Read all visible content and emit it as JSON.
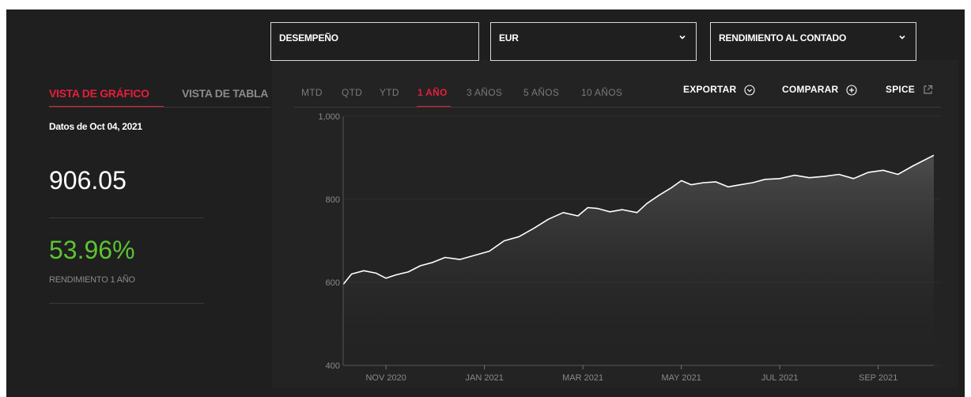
{
  "dropdowns": {
    "metric": {
      "value": "DESEMPEÑO"
    },
    "currency": {
      "value": "EUR"
    },
    "return_type": {
      "value": "RENDIMIENTO AL CONTADO"
    }
  },
  "view_tabs": [
    {
      "label": "VISTA DE GRÁFICO",
      "active": true
    },
    {
      "label": "VISTA DE TABLA",
      "active": false
    }
  ],
  "summary": {
    "as_of": "Datos de Oct 04, 2021",
    "value": "906.05",
    "return_pct": "53.96%",
    "return_label": "RENDIMIENTO 1 AÑO"
  },
  "ranges": [
    {
      "label": "MTD",
      "active": false
    },
    {
      "label": "QTD",
      "active": false
    },
    {
      "label": "YTD",
      "active": false
    },
    {
      "label": "1 AÑO",
      "active": true
    },
    {
      "label": "3 AÑOS",
      "active": false
    },
    {
      "label": "5 AÑOS",
      "active": false
    },
    {
      "label": "10 AÑOS",
      "active": false
    }
  ],
  "tools": {
    "export": "EXPORTAR",
    "compare": "COMPARAR",
    "spice": "SPICE"
  },
  "colors": {
    "accent_red": "#e61e3c",
    "positive_green": "#5cc433",
    "background": "#1f1f1f",
    "line": "#ffffff"
  },
  "chart_data": {
    "type": "area",
    "y_ticks": [
      "1,000",
      "800",
      "600",
      "400"
    ],
    "ylim": [
      400,
      1000
    ],
    "x_ticks": [
      "NOV 2020",
      "JAN 2021",
      "MAR 2021",
      "MAY 2021",
      "JUL 2021",
      "SEP 2021"
    ],
    "x_tick_months": [
      1.0,
      3.0,
      5.0,
      7.0,
      9.0,
      11.0
    ],
    "xlim_months": [
      0.13,
      12.13
    ],
    "series": [
      {
        "x_months": [
          0.13,
          0.3,
          0.55,
          0.8,
          1.0,
          1.2,
          1.45,
          1.7,
          1.95,
          2.2,
          2.5,
          2.8,
          3.1,
          3.4,
          3.7,
          4.0,
          4.3,
          4.6,
          4.9,
          5.1,
          5.3,
          5.55,
          5.8,
          6.1,
          6.3,
          6.55,
          6.8,
          7.0,
          7.2,
          7.45,
          7.7,
          7.95,
          8.2,
          8.45,
          8.7,
          9.0,
          9.3,
          9.6,
          9.9,
          10.2,
          10.5,
          10.8,
          11.1,
          11.4,
          11.7,
          12.13
        ],
        "values": [
          595,
          620,
          628,
          622,
          610,
          618,
          625,
          640,
          648,
          660,
          655,
          665,
          675,
          700,
          710,
          730,
          752,
          768,
          760,
          780,
          778,
          770,
          775,
          768,
          790,
          810,
          828,
          845,
          835,
          840,
          842,
          830,
          835,
          840,
          848,
          850,
          858,
          852,
          855,
          860,
          850,
          865,
          870,
          860,
          880,
          906
        ]
      }
    ]
  }
}
